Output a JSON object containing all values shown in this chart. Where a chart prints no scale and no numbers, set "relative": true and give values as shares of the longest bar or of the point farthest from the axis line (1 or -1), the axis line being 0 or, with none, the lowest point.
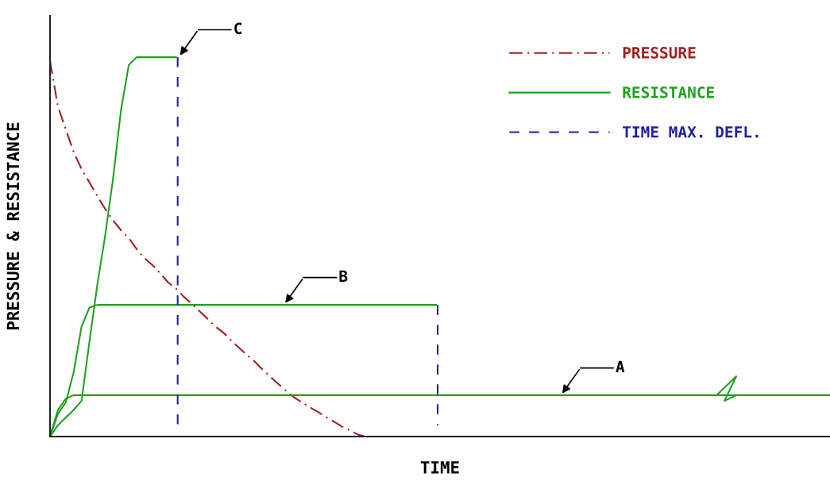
{
  "chart_data": {
    "type": "line",
    "relative": true,
    "xlabel": "TIME",
    "ylabel": "PRESSURE & RESISTANCE",
    "legend": "top right",
    "marker": "none",
    "categories": [
      null,
      null,
      null,
      null,
      null,
      null,
      null,
      null,
      null,
      null,
      null,
      null,
      null,
      null,
      null,
      null,
      null,
      null,
      null,
      null,
      null,
      null,
      null,
      null,
      null,
      null,
      null,
      null,
      null,
      null,
      null,
      null,
      null,
      null,
      null,
      null,
      null,
      null,
      null,
      null,
      null,
      null,
      null,
      null,
      null,
      null,
      null,
      null,
      null,
      null,
      null,
      null,
      null,
      null,
      null,
      null,
      null,
      null,
      null,
      null,
      null,
      null,
      null,
      null,
      null,
      null,
      null,
      null,
      null,
      null,
      null,
      null,
      null,
      null,
      null,
      null,
      null,
      null,
      null,
      null,
      null,
      null,
      null,
      null,
      null,
      null,
      null,
      null,
      null,
      null,
      null,
      null,
      null,
      null,
      null,
      null,
      null,
      null,
      null,
      null
    ],
    "series": [
      {
        "name": "PRESSURE",
        "color": "#a02020",
        "line_style": "dashdot",
        "values": [
          0.99,
          0.87,
          0.81,
          0.75,
          0.705,
          0.67,
          0.634,
          0.6,
          0.57,
          0.544,
          0.523,
          0.494,
          0.47,
          0.452,
          0.43,
          0.406,
          0.39,
          0.368,
          0.35,
          0.33,
          0.31,
          0.29,
          0.274,
          0.253,
          0.234,
          0.215,
          0.197,
          0.176,
          0.157,
          0.138,
          0.12,
          0.103,
          0.09,
          0.077,
          0.065,
          0.052,
          0.04,
          0.027,
          0.017,
          0.006,
          0,
          null,
          null,
          null,
          null,
          null,
          null,
          null,
          null,
          null,
          null,
          null,
          null,
          null,
          null,
          null,
          null,
          null,
          null,
          null,
          null,
          null,
          null,
          null,
          null,
          null,
          null,
          null,
          null,
          null,
          null,
          null,
          null,
          null,
          null,
          null,
          null,
          null,
          null,
          null,
          null,
          null,
          null,
          null,
          null,
          null,
          null,
          null,
          null,
          null,
          null,
          null,
          null,
          null,
          null,
          null,
          null,
          null,
          null,
          null
        ]
      },
      {
        "name": "RESISTANCE",
        "color": "#20a020",
        "line_style": "solid",
        "values": [
          0,
          0.07,
          0.1,
          0.109,
          0.109,
          0.109,
          0.109,
          0.109,
          0.109,
          0.109,
          0.109,
          0.109,
          0.109,
          0.109,
          0.109,
          0.109,
          0.109,
          0.109,
          0.109,
          0.109,
          0.109,
          0.109,
          0.109,
          0.109,
          0.109,
          0.109,
          0.109,
          0.109,
          0.109,
          0.109,
          0.109,
          0.109,
          0.109,
          0.109,
          0.109,
          0.109,
          0.109,
          0.109,
          0.109,
          0.109,
          0.109,
          0.109,
          0.109,
          0.109,
          0.109,
          0.109,
          0.109,
          0.109,
          0.109,
          0.109,
          0.109,
          0.109,
          0.109,
          0.109,
          0.109,
          0.109,
          0.109,
          0.109,
          0.109,
          0.109,
          0.109,
          0.109,
          0.109,
          0.109,
          0.109,
          0.109,
          0.109,
          0.109,
          0.109,
          0.109,
          0.109,
          0.109,
          0.109,
          0.109,
          0.109,
          0.109,
          0.109,
          0.109,
          0.109,
          0.109,
          0.109,
          0.109,
          0.109,
          0.109,
          0.109,
          0.109,
          0.109,
          0.109,
          0.109,
          0.109,
          0.109,
          0.109,
          0.109,
          0.109,
          0.109,
          0.109,
          0.109,
          0.109,
          0.109,
          0.109
        ]
      },
      {
        "color": "#20a020",
        "line_style": "solid",
        "values": [
          0,
          0.06,
          0.09,
          0.17,
          0.29,
          0.34,
          0.347,
          0.347,
          0.347,
          0.347,
          0.347,
          0.347,
          0.347,
          0.347,
          0.347,
          0.347,
          0.347,
          0.347,
          0.347,
          0.347,
          0.347,
          0.347,
          0.347,
          0.347,
          0.347,
          0.347,
          0.347,
          0.347,
          0.347,
          0.347,
          0.347,
          0.347,
          0.347,
          0.347,
          0.347,
          0.347,
          0.347,
          0.347,
          0.347,
          0.347,
          0.347,
          0.347,
          0.347,
          0.347,
          0.347,
          0.347,
          0.347,
          0.347,
          0.347,
          0.347,
          null,
          null,
          null,
          null,
          null,
          null,
          null,
          null,
          null,
          null,
          null,
          null,
          null,
          null,
          null,
          null,
          null,
          null,
          null,
          null,
          null,
          null,
          null,
          null,
          null,
          null,
          null,
          null,
          null,
          null,
          null,
          null,
          null,
          null,
          null,
          null,
          null,
          null,
          null,
          null,
          null,
          null,
          null,
          null,
          null,
          null,
          null,
          null,
          null,
          null
        ]
      },
      {
        "color": "#20a020",
        "line_style": "solid",
        "values": [
          0,
          0.03,
          0.05,
          0.07,
          0.094,
          0.25,
          0.4,
          0.53,
          0.68,
          0.86,
          0.98,
          1.0,
          1.0,
          1.0,
          1.0,
          1.0,
          1.0,
          null,
          null,
          null,
          null,
          null,
          null,
          null,
          null,
          null,
          null,
          null,
          null,
          null,
          null,
          null,
          null,
          null,
          null,
          null,
          null,
          null,
          null,
          null,
          null,
          null,
          null,
          null,
          null,
          null,
          null,
          null,
          null,
          null,
          null,
          null,
          null,
          null,
          null,
          null,
          null,
          null,
          null,
          null,
          null,
          null,
          null,
          null,
          null,
          null,
          null,
          null,
          null,
          null,
          null,
          null,
          null,
          null,
          null,
          null,
          null,
          null,
          null,
          null,
          null,
          null,
          null,
          null,
          null,
          null,
          null,
          null,
          null,
          null,
          null,
          null,
          null,
          null,
          null,
          null,
          null,
          null,
          null,
          null
        ]
      }
    ],
    "annotations": [
      "A",
      "B",
      "C",
      "TIME MAX. DEFL."
    ]
  }
}
